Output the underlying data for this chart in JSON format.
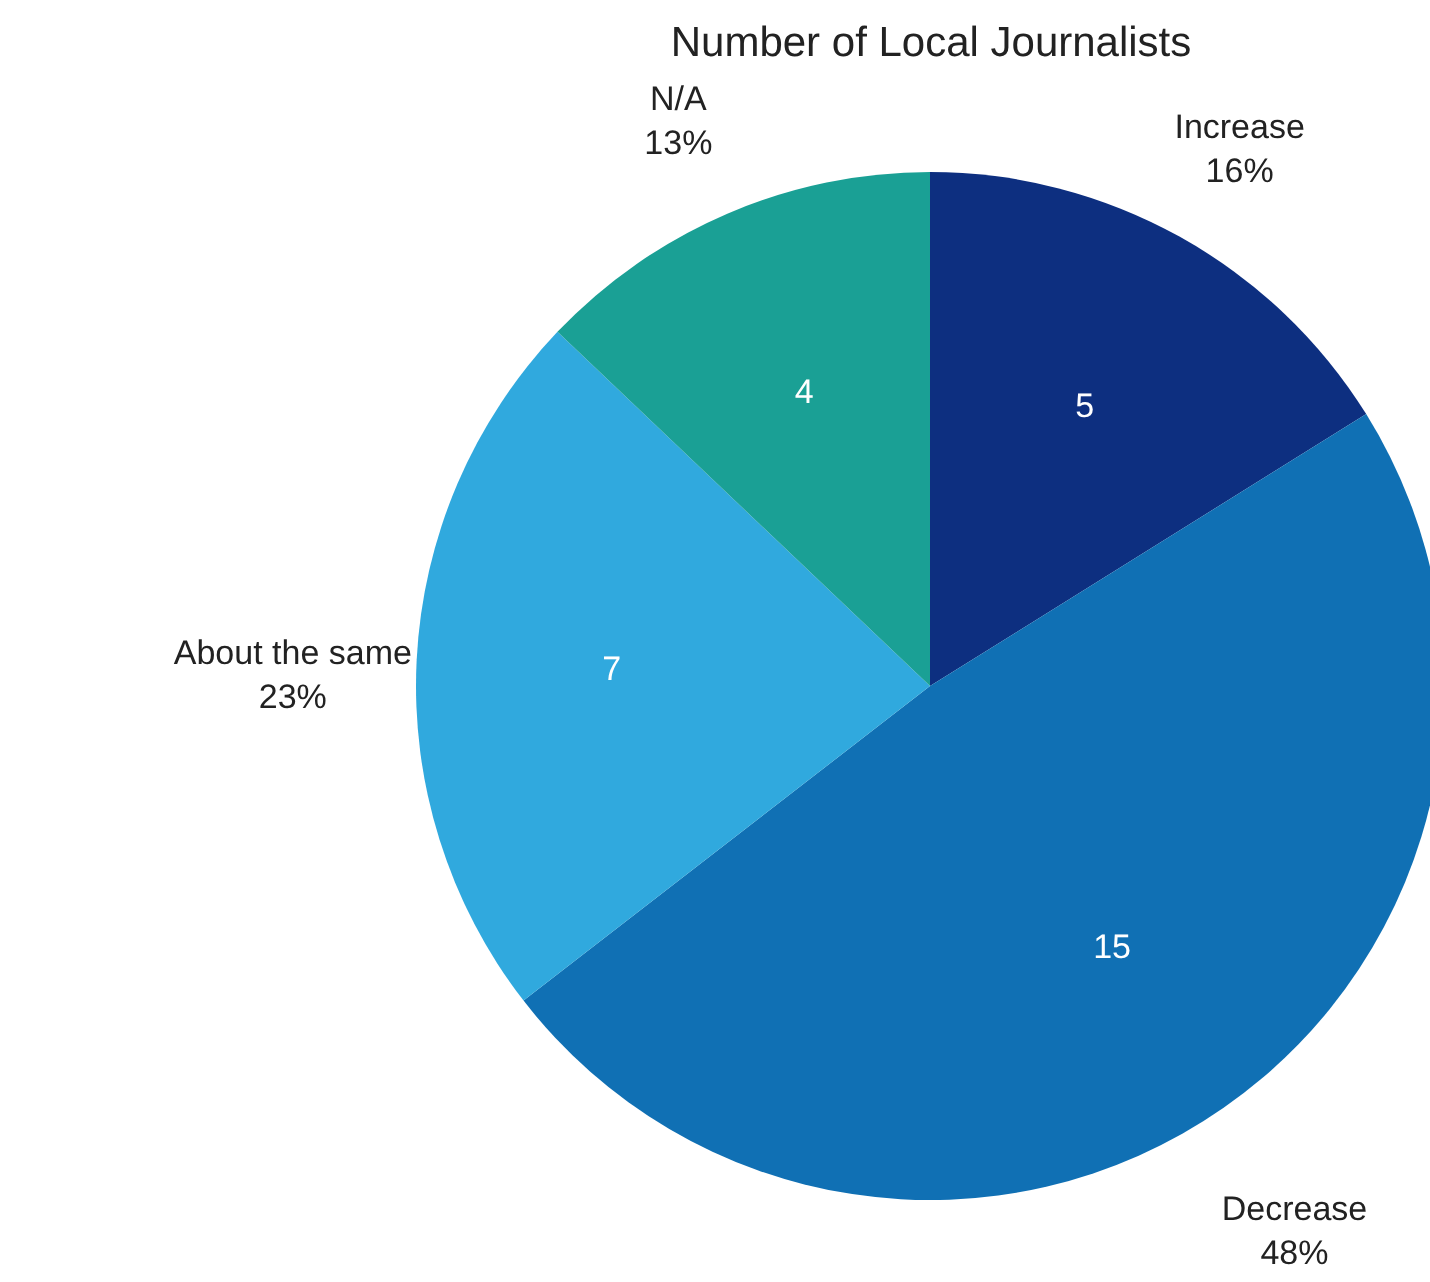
{
  "chart_data": {
    "type": "pie",
    "title": "Number of Local Journalists",
    "categories": [
      "Increase",
      "Decrease",
      "About the same",
      "N/A"
    ],
    "values": [
      5,
      15,
      7,
      4
    ],
    "colors": [
      "#0d2f80",
      "#1070b4",
      "#30a9de",
      "#1aa095"
    ],
    "data_labels": true,
    "annotations": [
      "16%",
      "48%",
      "23%",
      "13%"
    ]
  }
}
